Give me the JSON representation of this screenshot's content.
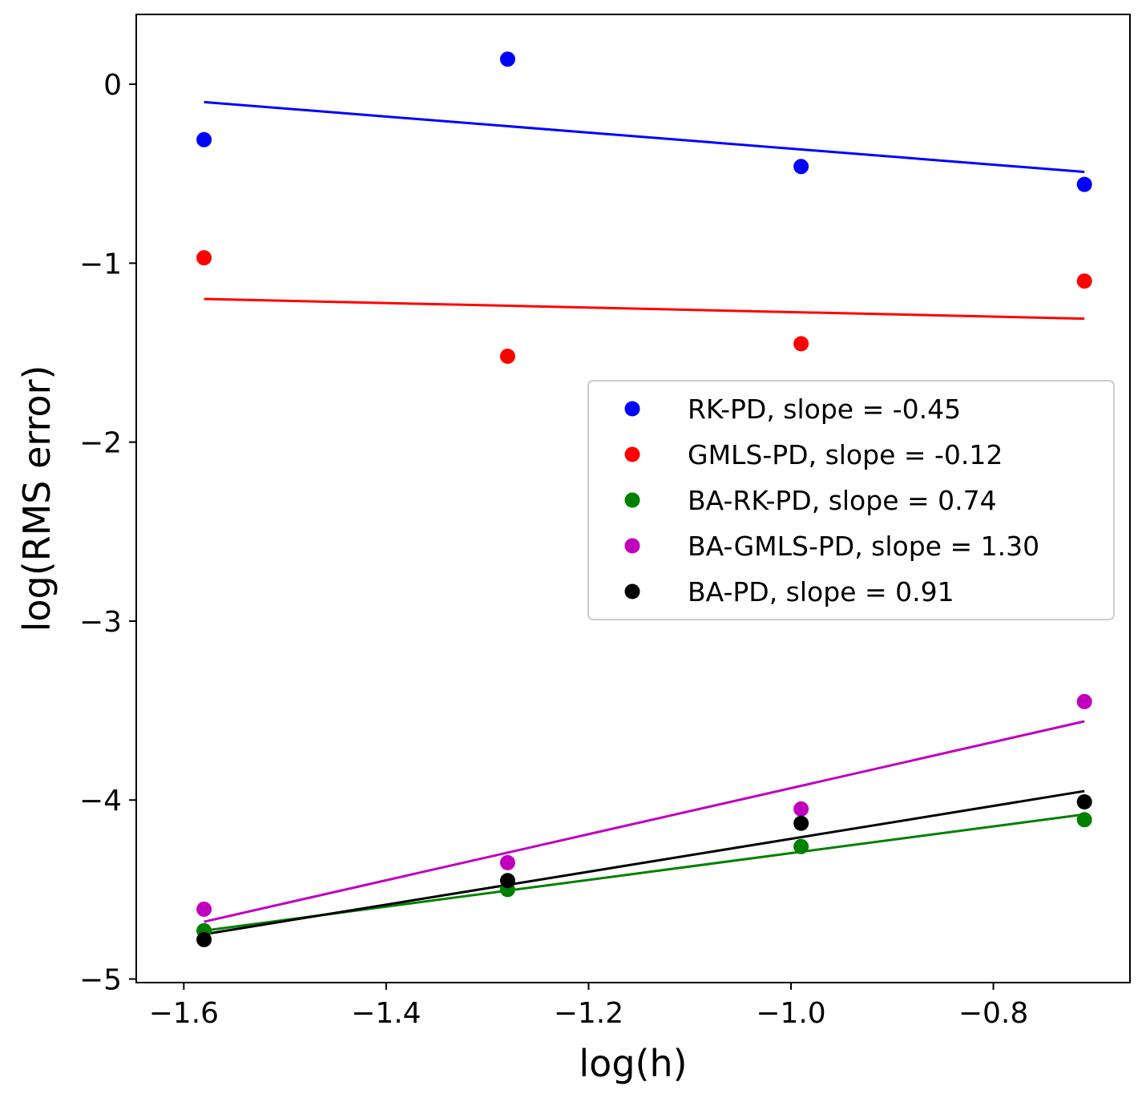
{
  "chart_data": {
    "type": "scatter",
    "title": "",
    "xlabel": "log(h)",
    "ylabel": "log(RMS error)",
    "xlim": [
      -1.647,
      -0.665
    ],
    "ylim": [
      -5.02,
      0.39
    ],
    "xticks": [
      -1.6,
      -1.4,
      -1.2,
      -1.0,
      -0.8
    ],
    "xtick_labels": [
      "−1.6",
      "−1.4",
      "−1.2",
      "−1.0",
      "−0.8"
    ],
    "yticks": [
      0,
      -1,
      -2,
      -3,
      -4,
      -5
    ],
    "ytick_labels": [
      "0",
      "−1",
      "−2",
      "−3",
      "−4",
      "−5"
    ],
    "grid": false,
    "legend_position": "center-right",
    "x": [
      -1.58,
      -1.28,
      -0.99,
      -0.71
    ],
    "series": [
      {
        "name": "RK-PD",
        "label": "RK-PD, slope = -0.45",
        "color": "#0000ff",
        "values": [
          -0.31,
          0.14,
          -0.46,
          -0.56
        ],
        "fit": {
          "x": [
            -1.58,
            -0.71
          ],
          "y": [
            -0.1,
            -0.49
          ]
        }
      },
      {
        "name": "GMLS-PD",
        "label": "GMLS-PD, slope = -0.12",
        "color": "#ff0000",
        "values": [
          -0.97,
          -1.52,
          -1.45,
          -1.1
        ],
        "fit": {
          "x": [
            -1.58,
            -0.71
          ],
          "y": [
            -1.2,
            -1.31
          ]
        }
      },
      {
        "name": "BA-RK-PD",
        "label": "BA-RK-PD, slope = 0.74",
        "color": "#008000",
        "values": [
          -4.73,
          -4.5,
          -4.26,
          -4.11
        ],
        "fit": {
          "x": [
            -1.58,
            -0.71
          ],
          "y": [
            -4.73,
            -4.08
          ]
        }
      },
      {
        "name": "BA-GMLS-PD",
        "label": "BA-GMLS-PD, slope = 1.30",
        "color": "#bf00bf",
        "values": [
          -4.61,
          -4.35,
          -4.05,
          -3.45
        ],
        "fit": {
          "x": [
            -1.58,
            -0.71
          ],
          "y": [
            -4.68,
            -3.56
          ]
        }
      },
      {
        "name": "BA-PD",
        "label": "BA-PD, slope = 0.91",
        "color": "#000000",
        "values": [
          -4.78,
          -4.45,
          -4.13,
          -4.01
        ],
        "fit": {
          "x": [
            -1.58,
            -0.71
          ],
          "y": [
            -4.75,
            -3.95
          ]
        }
      }
    ]
  }
}
